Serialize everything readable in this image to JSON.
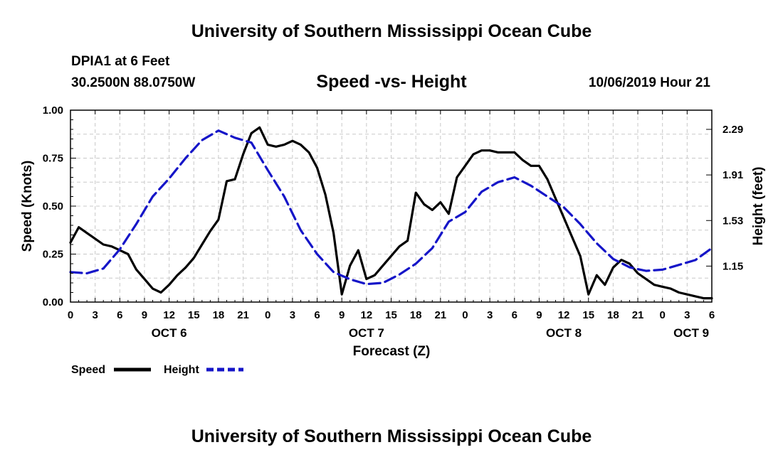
{
  "header": {
    "title": "University of Southern Mississippi Ocean Cube",
    "station": "DPIA1 at 6 Feet",
    "coords": "30.2500N 88.0750W",
    "chart_title": "Speed -vs- Height",
    "datetime": "10/06/2019 Hour 21"
  },
  "footer": {
    "title": "University of Southern Mississippi Ocean Cube"
  },
  "colors": {
    "speed": "#000000",
    "height": "#1515c8",
    "grid": "#c8c8c8"
  },
  "chart_data": {
    "type": "line",
    "title": "Speed -vs- Height",
    "xlabel": "Forecast (Z)",
    "ylabel": "Speed (Knots)",
    "y2label": "Height (feet)",
    "xlim": [
      0,
      78
    ],
    "ylim": [
      0,
      1.0
    ],
    "y2lim": [
      0.85,
      2.45
    ],
    "x_ticks": [
      0,
      3,
      6,
      9,
      12,
      15,
      18,
      21,
      24,
      27,
      30,
      33,
      36,
      39,
      42,
      45,
      48,
      51,
      54,
      57,
      60,
      63,
      66,
      69,
      72,
      75,
      78
    ],
    "x_tick_labels": [
      "0",
      "3",
      "6",
      "9",
      "12",
      "15",
      "18",
      "21",
      "0",
      "3",
      "6",
      "9",
      "12",
      "15",
      "18",
      "21",
      "0",
      "3",
      "6",
      "9",
      "12",
      "15",
      "18",
      "21",
      "0",
      "3",
      "6"
    ],
    "date_labels": [
      {
        "x": 12,
        "label": "OCT 6"
      },
      {
        "x": 36,
        "label": "OCT 7"
      },
      {
        "x": 60,
        "label": "OCT 8"
      },
      {
        "x": 75.5,
        "label": "OCT 9"
      }
    ],
    "y_ticks": [
      0,
      0.25,
      0.5,
      0.75,
      1.0
    ],
    "y_tick_labels": [
      "0.00",
      "0.25",
      "0.50",
      "0.75",
      "1.00"
    ],
    "y2_ticks": [
      1.15,
      1.53,
      1.91,
      2.29
    ],
    "y2_tick_labels": [
      "1.15",
      "1.53",
      "1.91",
      "2.29"
    ],
    "legend": [
      {
        "name": "Speed",
        "style": "solid"
      },
      {
        "name": "Height",
        "style": "dashed"
      }
    ],
    "series": [
      {
        "name": "Speed",
        "axis": "left",
        "style": "solid",
        "x": [
          0,
          1,
          2,
          3,
          4,
          5,
          6,
          7,
          8,
          9,
          10,
          11,
          12,
          13,
          14,
          15,
          16,
          17,
          18,
          19,
          20,
          21,
          22,
          23,
          24,
          25,
          26,
          27,
          28,
          29,
          30,
          31,
          32,
          33,
          34,
          35,
          36,
          37,
          38,
          39,
          40,
          41,
          42,
          43,
          44,
          45,
          46,
          47,
          48,
          49,
          50,
          51,
          52,
          53,
          54,
          55,
          56,
          57,
          58,
          59,
          60,
          61,
          62,
          63,
          64,
          65,
          66,
          67,
          68,
          69,
          70,
          71,
          72,
          73,
          74,
          75,
          76,
          77,
          78
        ],
        "values": [
          0.31,
          0.39,
          0.36,
          0.33,
          0.3,
          0.29,
          0.27,
          0.25,
          0.17,
          0.12,
          0.07,
          0.05,
          0.09,
          0.14,
          0.18,
          0.23,
          0.3,
          0.37,
          0.43,
          0.63,
          0.64,
          0.77,
          0.88,
          0.91,
          0.82,
          0.81,
          0.82,
          0.84,
          0.82,
          0.78,
          0.7,
          0.56,
          0.36,
          0.04,
          0.19,
          0.27,
          0.12,
          0.14,
          0.19,
          0.24,
          0.29,
          0.32,
          0.57,
          0.51,
          0.48,
          0.52,
          0.46,
          0.65,
          0.71,
          0.77,
          0.79,
          0.79,
          0.78,
          0.78,
          0.78,
          0.74,
          0.71,
          0.71,
          0.64,
          0.54,
          0.44,
          0.34,
          0.24,
          0.04,
          0.14,
          0.09,
          0.18,
          0.22,
          0.2,
          0.15,
          0.12,
          0.09,
          0.08,
          0.07,
          0.05,
          0.04,
          0.03,
          0.02,
          0.02
        ],
        "visible_until": 78
      },
      {
        "name": "Height",
        "axis": "right",
        "style": "dashed",
        "x": [
          0,
          2,
          4,
          6,
          8,
          10,
          12,
          14,
          16,
          18,
          20,
          22,
          24,
          26,
          28,
          30,
          32,
          34,
          36,
          38,
          40,
          42,
          44,
          46,
          48,
          50,
          52,
          54,
          56,
          58,
          60,
          62,
          64,
          66,
          68,
          70,
          72,
          74,
          76,
          78
        ],
        "values": [
          1.1,
          1.09,
          1.13,
          1.29,
          1.5,
          1.73,
          1.88,
          2.05,
          2.2,
          2.28,
          2.22,
          2.18,
          1.95,
          1.73,
          1.45,
          1.25,
          1.1,
          1.04,
          1.0,
          1.01,
          1.08,
          1.17,
          1.3,
          1.52,
          1.6,
          1.77,
          1.85,
          1.89,
          1.82,
          1.73,
          1.64,
          1.5,
          1.34,
          1.21,
          1.14,
          1.11,
          1.12,
          1.16,
          1.2,
          1.3
        ]
      }
    ]
  }
}
